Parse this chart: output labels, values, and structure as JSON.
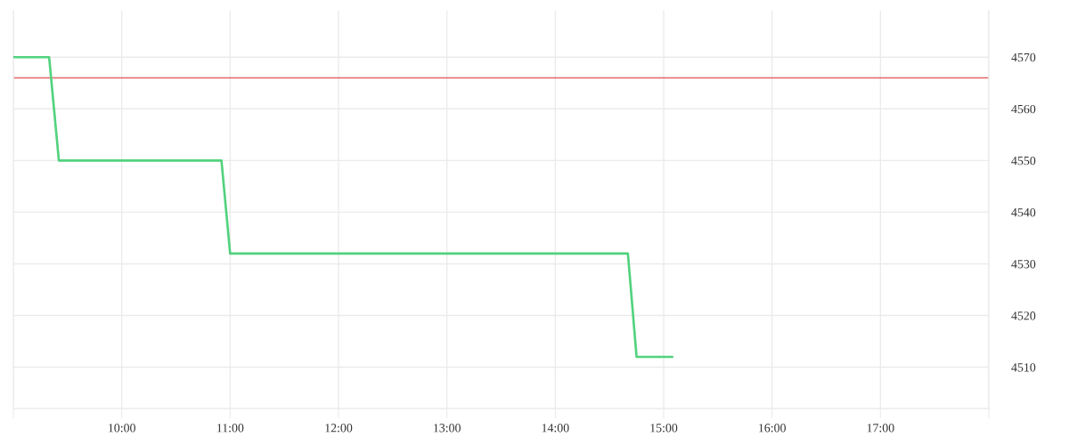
{
  "chart_data": {
    "type": "line",
    "x": [
      9.0,
      9.33,
      9.42,
      10.92,
      11.0,
      14.67,
      14.75,
      15.08
    ],
    "series": [
      {
        "color": "#52d27e",
        "values": [
          4570,
          4570,
          4550,
          4550,
          4532,
          4532,
          4512,
          4512
        ]
      }
    ],
    "xlim": [
      9,
      18
    ],
    "xticks": [
      {
        "value": 9,
        "label": null
      },
      {
        "value": 10,
        "label": "10:00"
      },
      {
        "value": 11,
        "label": "11:00"
      },
      {
        "value": 12,
        "label": "12:00"
      },
      {
        "value": 13,
        "label": "13:00"
      },
      {
        "value": 14,
        "label": "14:00"
      },
      {
        "value": 15,
        "label": "15:00"
      },
      {
        "value": 16,
        "label": "16:00"
      },
      {
        "value": 17,
        "label": "17:00"
      },
      {
        "value": 18,
        "label": null
      }
    ],
    "ylim": [
      4502,
      4579
    ],
    "yticks": [
      4510,
      4520,
      4530,
      4540,
      4550,
      4560,
      4570
    ],
    "ref_lines": [
      {
        "axis": "y",
        "value": 4566,
        "color": "#e06666",
        "line_style": "solid"
      }
    ],
    "grid": true,
    "line_style": "solid",
    "marker": "none"
  }
}
